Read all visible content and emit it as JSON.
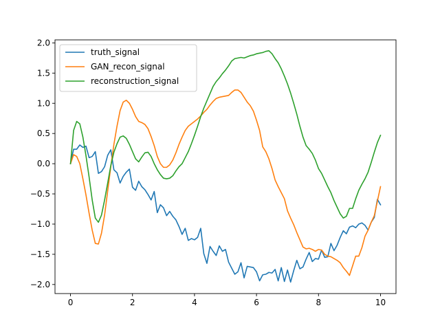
{
  "chart_data": {
    "type": "line",
    "title": "",
    "xlabel": "",
    "ylabel": "",
    "xlim": [
      -0.5,
      10.5
    ],
    "ylim": [
      -2.15,
      2.05
    ],
    "xticks": [
      0,
      2,
      4,
      6,
      8,
      10
    ],
    "xtick_labels": [
      "0",
      "2",
      "4",
      "6",
      "8",
      "10"
    ],
    "yticks": [
      -2.0,
      -1.5,
      -1.0,
      -0.5,
      0.0,
      0.5,
      1.0,
      1.5,
      2.0
    ],
    "ytick_labels": [
      "−2.0",
      "−1.5",
      "−1.0",
      "−0.5",
      "0.0",
      "0.5",
      "1.0",
      "1.5",
      "2.0"
    ],
    "grid": false,
    "legend_position": "upper-left",
    "series": [
      {
        "name": "truth_signal",
        "color": "#1f77b4",
        "points": [
          [
            0.0,
            0.0
          ],
          [
            0.1,
            0.24
          ],
          [
            0.2,
            0.24
          ],
          [
            0.3,
            0.31
          ],
          [
            0.4,
            0.27
          ],
          [
            0.5,
            0.29
          ],
          [
            0.6,
            0.1
          ],
          [
            0.7,
            0.12
          ],
          [
            0.8,
            0.2
          ],
          [
            0.9,
            -0.16
          ],
          [
            1.0,
            -0.13
          ],
          [
            1.1,
            -0.05
          ],
          [
            1.2,
            0.14
          ],
          [
            1.3,
            0.23
          ],
          [
            1.4,
            -0.1
          ],
          [
            1.5,
            -0.15
          ],
          [
            1.6,
            -0.32
          ],
          [
            1.7,
            -0.21
          ],
          [
            1.8,
            -0.14
          ],
          [
            1.9,
            -0.09
          ],
          [
            2.0,
            -0.39
          ],
          [
            2.1,
            -0.44
          ],
          [
            2.2,
            -0.29
          ],
          [
            2.3,
            -0.38
          ],
          [
            2.4,
            -0.43
          ],
          [
            2.5,
            -0.51
          ],
          [
            2.6,
            -0.6
          ],
          [
            2.7,
            -0.46
          ],
          [
            2.8,
            -0.81
          ],
          [
            2.9,
            -0.68
          ],
          [
            3.0,
            -0.73
          ],
          [
            3.1,
            -0.86
          ],
          [
            3.2,
            -0.79
          ],
          [
            3.3,
            -0.87
          ],
          [
            3.4,
            -0.93
          ],
          [
            3.5,
            -1.04
          ],
          [
            3.6,
            -1.17
          ],
          [
            3.7,
            -1.07
          ],
          [
            3.8,
            -1.27
          ],
          [
            3.9,
            -1.24
          ],
          [
            4.0,
            -1.26
          ],
          [
            4.1,
            -1.22
          ],
          [
            4.2,
            -1.07
          ],
          [
            4.3,
            -1.49
          ],
          [
            4.4,
            -1.65
          ],
          [
            4.5,
            -1.37
          ],
          [
            4.6,
            -1.45
          ],
          [
            4.7,
            -1.52
          ],
          [
            4.8,
            -1.36
          ],
          [
            4.9,
            -1.45
          ],
          [
            5.0,
            -1.42
          ],
          [
            5.1,
            -1.63
          ],
          [
            5.2,
            -1.73
          ],
          [
            5.3,
            -1.83
          ],
          [
            5.4,
            -1.79
          ],
          [
            5.5,
            -1.64
          ],
          [
            5.6,
            -1.89
          ],
          [
            5.7,
            -1.7
          ],
          [
            5.8,
            -1.71
          ],
          [
            5.9,
            -1.72
          ],
          [
            6.0,
            -1.79
          ],
          [
            6.1,
            -1.94
          ],
          [
            6.2,
            -1.84
          ],
          [
            6.3,
            -1.83
          ],
          [
            6.4,
            -1.8
          ],
          [
            6.5,
            -1.81
          ],
          [
            6.6,
            -1.75
          ],
          [
            6.7,
            -1.94
          ],
          [
            6.8,
            -1.72
          ],
          [
            6.9,
            -1.95
          ],
          [
            7.0,
            -1.76
          ],
          [
            7.1,
            -1.96
          ],
          [
            7.2,
            -1.77
          ],
          [
            7.3,
            -1.6
          ],
          [
            7.4,
            -1.74
          ],
          [
            7.5,
            -1.71
          ],
          [
            7.6,
            -1.58
          ],
          [
            7.7,
            -1.47
          ],
          [
            7.8,
            -1.62
          ],
          [
            7.9,
            -1.57
          ],
          [
            8.0,
            -1.58
          ],
          [
            8.1,
            -1.43
          ],
          [
            8.2,
            -1.55
          ],
          [
            8.3,
            -1.54
          ],
          [
            8.4,
            -1.32
          ],
          [
            8.5,
            -1.44
          ],
          [
            8.6,
            -1.35
          ],
          [
            8.7,
            -1.22
          ],
          [
            8.8,
            -1.11
          ],
          [
            8.9,
            -1.16
          ],
          [
            9.0,
            -1.05
          ],
          [
            9.1,
            -1.03
          ],
          [
            9.2,
            -1.06
          ],
          [
            9.3,
            -1.0
          ],
          [
            9.4,
            -0.98
          ],
          [
            9.5,
            -1.02
          ],
          [
            9.6,
            -1.1
          ],
          [
            9.7,
            -0.97
          ],
          [
            9.8,
            -0.89
          ],
          [
            9.9,
            -0.59
          ],
          [
            10.0,
            -0.68
          ]
        ]
      },
      {
        "name": "GAN_recon_signal",
        "color": "#ff7f0e",
        "points": [
          [
            0.0,
            0.0
          ],
          [
            0.1,
            0.15
          ],
          [
            0.2,
            0.12
          ],
          [
            0.3,
            0.0
          ],
          [
            0.4,
            -0.25
          ],
          [
            0.5,
            -0.52
          ],
          [
            0.6,
            -0.82
          ],
          [
            0.7,
            -1.1
          ],
          [
            0.8,
            -1.32
          ],
          [
            0.9,
            -1.33
          ],
          [
            1.0,
            -1.15
          ],
          [
            1.1,
            -0.85
          ],
          [
            1.2,
            -0.45
          ],
          [
            1.3,
            -0.05
          ],
          [
            1.4,
            0.32
          ],
          [
            1.5,
            0.62
          ],
          [
            1.6,
            0.88
          ],
          [
            1.7,
            1.02
          ],
          [
            1.8,
            1.05
          ],
          [
            1.9,
            1.0
          ],
          [
            2.0,
            0.9
          ],
          [
            2.1,
            0.78
          ],
          [
            2.2,
            0.7
          ],
          [
            2.3,
            0.68
          ],
          [
            2.4,
            0.65
          ],
          [
            2.5,
            0.58
          ],
          [
            2.6,
            0.45
          ],
          [
            2.7,
            0.3
          ],
          [
            2.8,
            0.12
          ],
          [
            2.9,
            0.0
          ],
          [
            3.0,
            -0.06
          ],
          [
            3.1,
            -0.06
          ],
          [
            3.2,
            -0.02
          ],
          [
            3.3,
            0.06
          ],
          [
            3.4,
            0.18
          ],
          [
            3.5,
            0.32
          ],
          [
            3.6,
            0.44
          ],
          [
            3.7,
            0.55
          ],
          [
            3.8,
            0.62
          ],
          [
            3.9,
            0.66
          ],
          [
            4.0,
            0.7
          ],
          [
            4.1,
            0.74
          ],
          [
            4.2,
            0.79
          ],
          [
            4.3,
            0.85
          ],
          [
            4.4,
            0.9
          ],
          [
            4.5,
            0.97
          ],
          [
            4.6,
            1.03
          ],
          [
            4.7,
            1.08
          ],
          [
            4.8,
            1.1
          ],
          [
            4.9,
            1.11
          ],
          [
            5.0,
            1.12
          ],
          [
            5.1,
            1.13
          ],
          [
            5.2,
            1.18
          ],
          [
            5.3,
            1.22
          ],
          [
            5.4,
            1.22
          ],
          [
            5.5,
            1.18
          ],
          [
            5.6,
            1.1
          ],
          [
            5.7,
            1.02
          ],
          [
            5.8,
            0.96
          ],
          [
            5.9,
            0.87
          ],
          [
            6.0,
            0.72
          ],
          [
            6.1,
            0.55
          ],
          [
            6.2,
            0.28
          ],
          [
            6.3,
            0.2
          ],
          [
            6.4,
            0.08
          ],
          [
            6.5,
            -0.08
          ],
          [
            6.6,
            -0.27
          ],
          [
            6.7,
            -0.38
          ],
          [
            6.8,
            -0.48
          ],
          [
            6.9,
            -0.58
          ],
          [
            7.0,
            -0.78
          ],
          [
            7.1,
            -0.9
          ],
          [
            7.2,
            -1.01
          ],
          [
            7.3,
            -1.14
          ],
          [
            7.4,
            -1.26
          ],
          [
            7.5,
            -1.38
          ],
          [
            7.6,
            -1.41
          ],
          [
            7.7,
            -1.4
          ],
          [
            7.8,
            -1.42
          ],
          [
            7.9,
            -1.45
          ],
          [
            8.0,
            -1.42
          ],
          [
            8.1,
            -1.43
          ],
          [
            8.2,
            -1.5
          ],
          [
            8.3,
            -1.53
          ],
          [
            8.4,
            -1.54
          ],
          [
            8.5,
            -1.57
          ],
          [
            8.6,
            -1.6
          ],
          [
            8.7,
            -1.64
          ],
          [
            8.8,
            -1.72
          ],
          [
            8.9,
            -1.78
          ],
          [
            9.0,
            -1.85
          ],
          [
            9.1,
            -1.69
          ],
          [
            9.2,
            -1.53
          ],
          [
            9.3,
            -1.53
          ],
          [
            9.4,
            -1.39
          ],
          [
            9.5,
            -1.2
          ],
          [
            9.6,
            -1.1
          ],
          [
            9.7,
            -0.97
          ],
          [
            9.8,
            -0.86
          ],
          [
            9.9,
            -0.62
          ],
          [
            10.0,
            -0.38
          ]
        ]
      },
      {
        "name": "reconstruction_signal",
        "color": "#2ca02c",
        "points": [
          [
            0.0,
            0.0
          ],
          [
            0.1,
            0.55
          ],
          [
            0.2,
            0.7
          ],
          [
            0.3,
            0.66
          ],
          [
            0.4,
            0.44
          ],
          [
            0.5,
            0.13
          ],
          [
            0.6,
            -0.22
          ],
          [
            0.7,
            -0.6
          ],
          [
            0.8,
            -0.9
          ],
          [
            0.9,
            -0.97
          ],
          [
            1.0,
            -0.85
          ],
          [
            1.1,
            -0.6
          ],
          [
            1.2,
            -0.32
          ],
          [
            1.3,
            -0.03
          ],
          [
            1.4,
            0.19
          ],
          [
            1.5,
            0.33
          ],
          [
            1.6,
            0.44
          ],
          [
            1.7,
            0.46
          ],
          [
            1.8,
            0.42
          ],
          [
            1.9,
            0.32
          ],
          [
            2.0,
            0.2
          ],
          [
            2.1,
            0.08
          ],
          [
            2.2,
            0.03
          ],
          [
            2.3,
            0.11
          ],
          [
            2.4,
            0.18
          ],
          [
            2.5,
            0.19
          ],
          [
            2.6,
            0.12
          ],
          [
            2.7,
            0.0
          ],
          [
            2.8,
            -0.1
          ],
          [
            2.9,
            -0.18
          ],
          [
            3.0,
            -0.24
          ],
          [
            3.1,
            -0.25
          ],
          [
            3.2,
            -0.24
          ],
          [
            3.3,
            -0.2
          ],
          [
            3.4,
            -0.12
          ],
          [
            3.5,
            -0.05
          ],
          [
            3.6,
            0.0
          ],
          [
            3.7,
            0.1
          ],
          [
            3.8,
            0.2
          ],
          [
            3.9,
            0.33
          ],
          [
            4.0,
            0.47
          ],
          [
            4.1,
            0.62
          ],
          [
            4.2,
            0.78
          ],
          [
            4.3,
            0.92
          ],
          [
            4.4,
            1.04
          ],
          [
            4.5,
            1.16
          ],
          [
            4.6,
            1.28
          ],
          [
            4.7,
            1.36
          ],
          [
            4.8,
            1.42
          ],
          [
            4.9,
            1.49
          ],
          [
            5.0,
            1.55
          ],
          [
            5.1,
            1.62
          ],
          [
            5.2,
            1.7
          ],
          [
            5.3,
            1.74
          ],
          [
            5.4,
            1.75
          ],
          [
            5.5,
            1.76
          ],
          [
            5.6,
            1.75
          ],
          [
            5.7,
            1.77
          ],
          [
            5.8,
            1.79
          ],
          [
            5.9,
            1.8
          ],
          [
            6.0,
            1.82
          ],
          [
            6.1,
            1.83
          ],
          [
            6.2,
            1.84
          ],
          [
            6.3,
            1.86
          ],
          [
            6.4,
            1.87
          ],
          [
            6.5,
            1.82
          ],
          [
            6.6,
            1.74
          ],
          [
            6.7,
            1.67
          ],
          [
            6.8,
            1.57
          ],
          [
            6.9,
            1.45
          ],
          [
            7.0,
            1.32
          ],
          [
            7.1,
            1.17
          ],
          [
            7.2,
            1.0
          ],
          [
            7.3,
            0.82
          ],
          [
            7.4,
            0.62
          ],
          [
            7.5,
            0.44
          ],
          [
            7.6,
            0.3
          ],
          [
            7.7,
            0.24
          ],
          [
            7.8,
            0.17
          ],
          [
            7.9,
            0.06
          ],
          [
            8.0,
            -0.08
          ],
          [
            8.1,
            -0.16
          ],
          [
            8.2,
            -0.27
          ],
          [
            8.3,
            -0.38
          ],
          [
            8.4,
            -0.48
          ],
          [
            8.5,
            -0.61
          ],
          [
            8.6,
            -0.72
          ],
          [
            8.7,
            -0.83
          ],
          [
            8.8,
            -0.9
          ],
          [
            8.9,
            -0.87
          ],
          [
            9.0,
            -0.74
          ],
          [
            9.1,
            -0.74
          ],
          [
            9.2,
            -0.58
          ],
          [
            9.3,
            -0.44
          ],
          [
            9.4,
            -0.34
          ],
          [
            9.5,
            -0.25
          ],
          [
            9.6,
            -0.14
          ],
          [
            9.7,
            0.02
          ],
          [
            9.8,
            0.19
          ],
          [
            9.9,
            0.35
          ],
          [
            10.0,
            0.47
          ]
        ]
      }
    ]
  }
}
